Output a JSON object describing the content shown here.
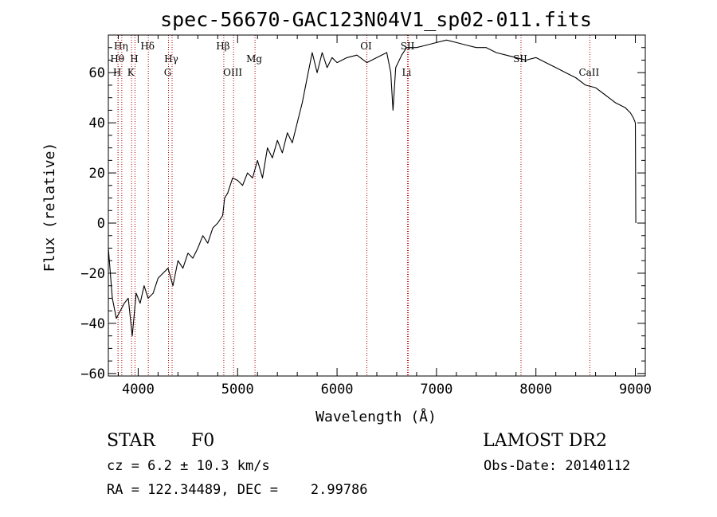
{
  "chart_data": {
    "type": "line",
    "title": "spec-56670-GAC123N04V1_sp02-011.fits",
    "xlabel": "Wavelength (Å)",
    "ylabel": "Flux (relative)",
    "xlim": [
      3700,
      9100
    ],
    "ylim": [
      -61,
      75
    ],
    "x_ticks": [
      4000,
      5000,
      6000,
      7000,
      8000,
      9000
    ],
    "y_ticks": [
      -60,
      -40,
      -20,
      0,
      20,
      40,
      60
    ],
    "grid": false,
    "series": [
      {
        "color": "#000000",
        "x": [
          3700,
          3740,
          3780,
          3820,
          3860,
          3900,
          3940,
          3980,
          4020,
          4060,
          4100,
          4150,
          4200,
          4250,
          4300,
          4350,
          4400,
          4450,
          4500,
          4550,
          4600,
          4650,
          4700,
          4750,
          4800,
          4850,
          4870,
          4900,
          4950,
          5000,
          5050,
          5100,
          5150,
          5200,
          5250,
          5300,
          5350,
          5400,
          5450,
          5500,
          5550,
          5600,
          5650,
          5700,
          5750,
          5800,
          5850,
          5900,
          5950,
          6000,
          6100,
          6200,
          6300,
          6400,
          6500,
          6540,
          6563,
          6590,
          6650,
          6700,
          6800,
          6900,
          7000,
          7100,
          7200,
          7300,
          7400,
          7500,
          7600,
          7700,
          7800,
          7900,
          8000,
          8100,
          8200,
          8300,
          8400,
          8500,
          8600,
          8700,
          8800,
          8900,
          8950,
          8980,
          9000,
          9005
        ],
        "y": [
          -10,
          -30,
          -38,
          -35,
          -32,
          -30,
          -45,
          -28,
          -32,
          -25,
          -30,
          -28,
          -22,
          -20,
          -18,
          -25,
          -15,
          -18,
          -12,
          -14,
          -10,
          -5,
          -8,
          -2,
          0,
          3,
          10,
          12,
          18,
          17,
          15,
          20,
          18,
          25,
          18,
          30,
          26,
          33,
          28,
          36,
          32,
          40,
          48,
          58,
          68,
          60,
          68,
          62,
          66,
          64,
          66,
          67,
          64,
          66,
          68,
          60,
          45,
          62,
          67,
          70,
          70,
          71,
          72,
          73,
          72,
          71,
          70,
          70,
          68,
          67,
          66,
          65,
          66,
          64,
          62,
          60,
          58,
          55,
          54,
          51,
          48,
          46,
          44,
          42,
          40,
          0
        ]
      }
    ],
    "lines": [
      {
        "label": "Hη",
        "x": 3835,
        "row": 1
      },
      {
        "label": "Hθ",
        "x": 3798,
        "row": 2
      },
      {
        "label": "H",
        "x": 3797,
        "row": 3
      },
      {
        "label": "Hδ",
        "x": 4102,
        "row": 1
      },
      {
        "label": "H",
        "x": 3968,
        "row": 2
      },
      {
        "label": "K",
        "x": 3934,
        "row": 3
      },
      {
        "label": "Hγ",
        "x": 4341,
        "row": 2
      },
      {
        "label": "G",
        "x": 4305,
        "row": 3
      },
      {
        "label": "Hβ",
        "x": 4861,
        "row": 1
      },
      {
        "label": "OIII",
        "x": 4959,
        "row": 3
      },
      {
        "label": "Mg",
        "x": 5175,
        "row": 2
      },
      {
        "label": "OI",
        "x": 6300,
        "row": 1
      },
      {
        "label": "SII",
        "x": 6717,
        "row": 1
      },
      {
        "label": "Li",
        "x": 6708,
        "row": 3
      },
      {
        "label": "SII",
        "x": 7850,
        "row": 2
      },
      {
        "label": "CaII",
        "x": 8542,
        "row": 3
      }
    ]
  },
  "info": {
    "object_type": "STAR",
    "subclass": "F0",
    "survey": "LAMOST DR2",
    "cz": "cz = 6.2 ± 10.3 km/s",
    "obs_date": "Obs-Date: 20140112",
    "coords": "RA = 122.34489, DEC =    2.99786"
  }
}
